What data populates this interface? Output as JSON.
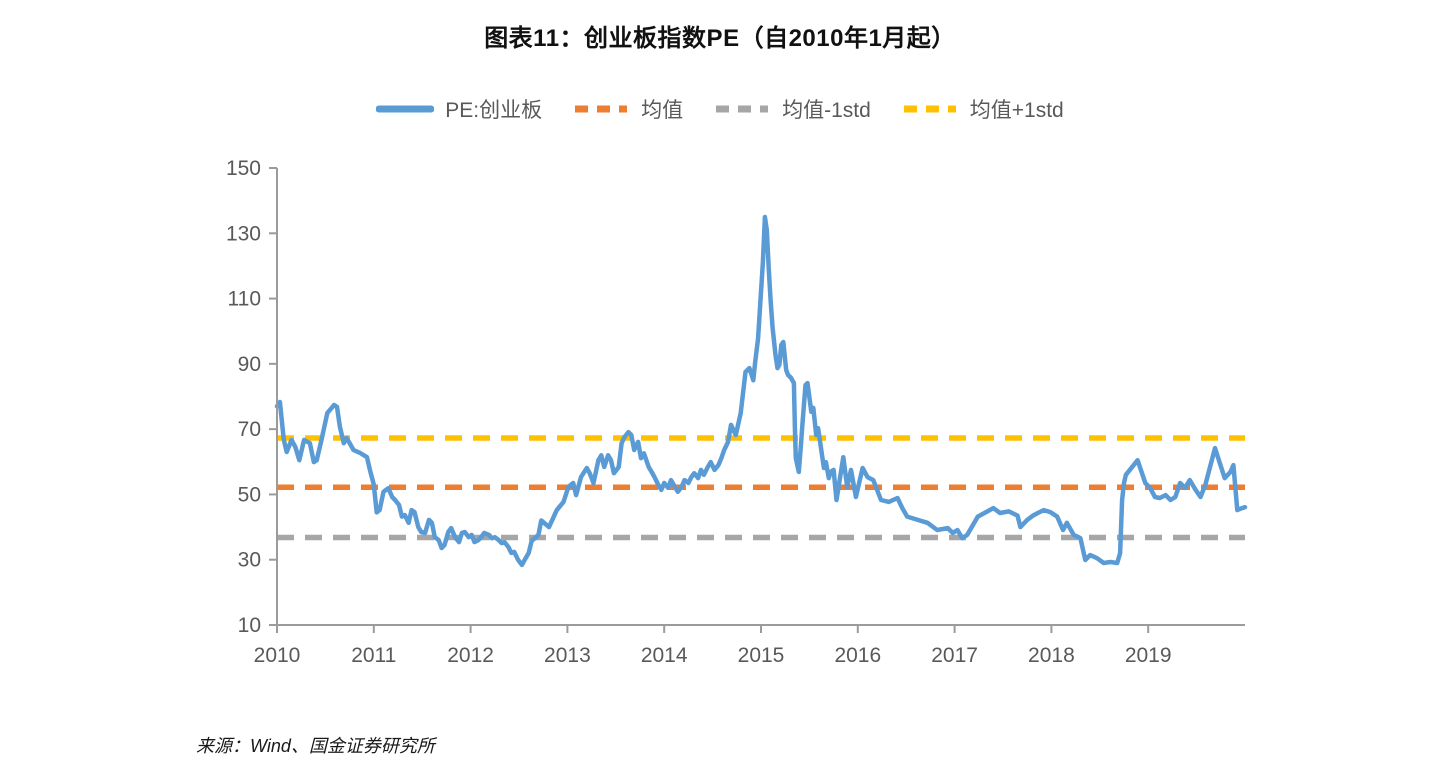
{
  "title": "图表11：创业板指数PE（自2010年1月起）",
  "source": "来源：Wind、国金证券研究所",
  "colors": {
    "series_blue": "#5B9BD5",
    "mean_orange": "#ED7D31",
    "minus_std_gray": "#A6A6A6",
    "plus_std_yellow": "#FFC000",
    "axis_gray": "#9B9B9B",
    "tick_label_gray": "#595959"
  },
  "legend": [
    {
      "label": "PE:创业板",
      "color": "#5B9BD5",
      "dashed": false
    },
    {
      "label": "均值",
      "color": "#ED7D31",
      "dashed": true
    },
    {
      "label": "均值-1std",
      "color": "#A6A6A6",
      "dashed": true
    },
    {
      "label": "均值+1std",
      "color": "#FFC000",
      "dashed": true
    }
  ],
  "chart_data": {
    "type": "line",
    "title": "创业板指数PE（自2010年1月起）",
    "xlabel": "",
    "ylabel": "",
    "x_axis": {
      "range": [
        2010,
        2020
      ],
      "ticks": [
        2010,
        2011,
        2012,
        2013,
        2014,
        2015,
        2016,
        2017,
        2018,
        2019
      ]
    },
    "y_axis": {
      "range": [
        10,
        150
      ],
      "ticks": [
        10,
        30,
        50,
        70,
        90,
        110,
        130,
        150
      ]
    },
    "grid": false,
    "legend_position": "top",
    "reference_lines": [
      {
        "name": "均值",
        "value": 52.2,
        "color": "#ED7D31"
      },
      {
        "name": "均值-1std",
        "value": 36.8,
        "color": "#A6A6A6"
      },
      {
        "name": "均值+1std",
        "value": 67.3,
        "color": "#FFC000"
      }
    ],
    "series": [
      {
        "name": "PE:创业板",
        "color": "#5B9BD5",
        "points": [
          [
            2010.0,
            77.0
          ],
          [
            2010.03,
            78.3
          ],
          [
            2010.07,
            66.7
          ],
          [
            2010.1,
            63.0
          ],
          [
            2010.15,
            66.7
          ],
          [
            2010.19,
            64.5
          ],
          [
            2010.23,
            60.5
          ],
          [
            2010.28,
            66.7
          ],
          [
            2010.34,
            65.7
          ],
          [
            2010.38,
            59.9
          ],
          [
            2010.41,
            60.5
          ],
          [
            2010.46,
            66.7
          ],
          [
            2010.52,
            74.9
          ],
          [
            2010.59,
            77.4
          ],
          [
            2010.62,
            76.8
          ],
          [
            2010.65,
            70.7
          ],
          [
            2010.69,
            65.7
          ],
          [
            2010.72,
            67.3
          ],
          [
            2010.79,
            63.6
          ],
          [
            2010.86,
            62.7
          ],
          [
            2010.93,
            61.4
          ],
          [
            2010.96,
            57.5
          ],
          [
            2011.0,
            53.0
          ],
          [
            2011.03,
            44.5
          ],
          [
            2011.06,
            45.2
          ],
          [
            2011.1,
            50.8
          ],
          [
            2011.15,
            51.9
          ],
          [
            2011.19,
            49.2
          ],
          [
            2011.22,
            48.3
          ],
          [
            2011.26,
            46.8
          ],
          [
            2011.29,
            43.2
          ],
          [
            2011.32,
            43.7
          ],
          [
            2011.36,
            41.3
          ],
          [
            2011.39,
            45.2
          ],
          [
            2011.42,
            44.6
          ],
          [
            2011.46,
            40.0
          ],
          [
            2011.49,
            38.5
          ],
          [
            2011.53,
            38.2
          ],
          [
            2011.57,
            42.2
          ],
          [
            2011.6,
            41.3
          ],
          [
            2011.63,
            36.9
          ],
          [
            2011.67,
            36.0
          ],
          [
            2011.7,
            33.6
          ],
          [
            2011.73,
            34.5
          ],
          [
            2011.77,
            38.5
          ],
          [
            2011.8,
            39.7
          ],
          [
            2011.84,
            36.9
          ],
          [
            2011.88,
            35.4
          ],
          [
            2011.91,
            38.2
          ],
          [
            2011.94,
            38.5
          ],
          [
            2011.98,
            36.9
          ],
          [
            2012.01,
            37.6
          ],
          [
            2012.04,
            35.4
          ],
          [
            2012.08,
            36.0
          ],
          [
            2012.11,
            36.9
          ],
          [
            2012.14,
            38.2
          ],
          [
            2012.19,
            37.6
          ],
          [
            2012.22,
            36.6
          ],
          [
            2012.25,
            36.9
          ],
          [
            2012.29,
            36.0
          ],
          [
            2012.32,
            35.1
          ],
          [
            2012.35,
            35.4
          ],
          [
            2012.39,
            33.9
          ],
          [
            2012.42,
            32.1
          ],
          [
            2012.45,
            32.4
          ],
          [
            2012.49,
            30.0
          ],
          [
            2012.53,
            28.4
          ],
          [
            2012.56,
            30.0
          ],
          [
            2012.6,
            32.1
          ],
          [
            2012.63,
            35.7
          ],
          [
            2012.7,
            37.6
          ],
          [
            2012.73,
            42.0
          ],
          [
            2012.81,
            40.0
          ],
          [
            2012.89,
            45.2
          ],
          [
            2012.96,
            47.7
          ],
          [
            2013.01,
            52.3
          ],
          [
            2013.06,
            53.5
          ],
          [
            2013.09,
            49.8
          ],
          [
            2013.14,
            55.3
          ],
          [
            2013.2,
            58.1
          ],
          [
            2013.23,
            56.5
          ],
          [
            2013.27,
            53.5
          ],
          [
            2013.32,
            60.5
          ],
          [
            2013.35,
            62.0
          ],
          [
            2013.38,
            58.4
          ],
          [
            2013.42,
            62.0
          ],
          [
            2013.45,
            60.5
          ],
          [
            2013.48,
            56.5
          ],
          [
            2013.53,
            58.4
          ],
          [
            2013.56,
            65.7
          ],
          [
            2013.59,
            67.6
          ],
          [
            2013.63,
            69.1
          ],
          [
            2013.66,
            68.2
          ],
          [
            2013.69,
            63.6
          ],
          [
            2013.73,
            66.1
          ],
          [
            2013.76,
            61.1
          ],
          [
            2013.79,
            62.6
          ],
          [
            2013.84,
            58.4
          ],
          [
            2013.87,
            56.9
          ],
          [
            2013.9,
            55.3
          ],
          [
            2013.94,
            52.9
          ],
          [
            2013.97,
            51.4
          ],
          [
            2014.0,
            53.5
          ],
          [
            2014.04,
            52.0
          ],
          [
            2014.07,
            54.4
          ],
          [
            2014.1,
            52.9
          ],
          [
            2014.14,
            50.8
          ],
          [
            2014.18,
            52.3
          ],
          [
            2014.21,
            54.4
          ],
          [
            2014.25,
            53.5
          ],
          [
            2014.28,
            55.3
          ],
          [
            2014.31,
            56.5
          ],
          [
            2014.35,
            55.0
          ],
          [
            2014.38,
            57.5
          ],
          [
            2014.41,
            56.0
          ],
          [
            2014.45,
            58.4
          ],
          [
            2014.48,
            59.9
          ],
          [
            2014.52,
            57.5
          ],
          [
            2014.56,
            59.0
          ],
          [
            2014.59,
            61.1
          ],
          [
            2014.62,
            63.6
          ],
          [
            2014.66,
            66.1
          ],
          [
            2014.69,
            71.3
          ],
          [
            2014.74,
            68.2
          ],
          [
            2014.79,
            74.9
          ],
          [
            2014.84,
            87.5
          ],
          [
            2014.88,
            88.7
          ],
          [
            2014.92,
            85.0
          ],
          [
            2014.94,
            90.6
          ],
          [
            2014.97,
            97.9
          ],
          [
            2015.0,
            112.0
          ],
          [
            2015.02,
            121.2
          ],
          [
            2015.04,
            135.0
          ],
          [
            2015.06,
            131.0
          ],
          [
            2015.08,
            119.4
          ],
          [
            2015.1,
            109.0
          ],
          [
            2015.12,
            101.0
          ],
          [
            2015.15,
            92.7
          ],
          [
            2015.17,
            88.7
          ],
          [
            2015.19,
            89.7
          ],
          [
            2015.21,
            95.8
          ],
          [
            2015.23,
            96.7
          ],
          [
            2015.26,
            88.1
          ],
          [
            2015.28,
            86.6
          ],
          [
            2015.31,
            85.7
          ],
          [
            2015.34,
            84.1
          ],
          [
            2015.35,
            70.3
          ],
          [
            2015.36,
            61.1
          ],
          [
            2015.39,
            56.9
          ],
          [
            2015.41,
            64.2
          ],
          [
            2015.43,
            72.2
          ],
          [
            2015.46,
            83.5
          ],
          [
            2015.48,
            84.1
          ],
          [
            2015.52,
            75.3
          ],
          [
            2015.54,
            76.5
          ],
          [
            2015.57,
            68.2
          ],
          [
            2015.59,
            70.3
          ],
          [
            2015.62,
            64.2
          ],
          [
            2015.65,
            58.1
          ],
          [
            2015.67,
            59.9
          ],
          [
            2015.7,
            55.0
          ],
          [
            2015.72,
            56.9
          ],
          [
            2015.75,
            57.5
          ],
          [
            2015.78,
            48.3
          ],
          [
            2015.85,
            61.4
          ],
          [
            2015.89,
            52.3
          ],
          [
            2015.93,
            57.5
          ],
          [
            2015.98,
            49.2
          ],
          [
            2016.05,
            58.1
          ],
          [
            2016.1,
            55.3
          ],
          [
            2016.16,
            54.4
          ],
          [
            2016.24,
            48.3
          ],
          [
            2016.32,
            47.7
          ],
          [
            2016.41,
            48.9
          ],
          [
            2016.46,
            45.8
          ],
          [
            2016.51,
            43.2
          ],
          [
            2016.62,
            42.2
          ],
          [
            2016.72,
            41.3
          ],
          [
            2016.82,
            39.1
          ],
          [
            2016.93,
            39.7
          ],
          [
            2016.98,
            38.2
          ],
          [
            2017.03,
            39.1
          ],
          [
            2017.08,
            36.6
          ],
          [
            2017.13,
            37.6
          ],
          [
            2017.24,
            43.2
          ],
          [
            2017.32,
            44.5
          ],
          [
            2017.4,
            45.8
          ],
          [
            2017.47,
            44.3
          ],
          [
            2017.56,
            44.8
          ],
          [
            2017.65,
            43.5
          ],
          [
            2017.68,
            40.0
          ],
          [
            2017.75,
            42.2
          ],
          [
            2017.81,
            43.5
          ],
          [
            2017.86,
            44.3
          ],
          [
            2017.92,
            45.2
          ],
          [
            2017.99,
            44.6
          ],
          [
            2018.06,
            43.2
          ],
          [
            2018.12,
            39.1
          ],
          [
            2018.16,
            41.3
          ],
          [
            2018.23,
            37.6
          ],
          [
            2018.3,
            36.6
          ],
          [
            2018.35,
            29.9
          ],
          [
            2018.4,
            31.4
          ],
          [
            2018.47,
            30.5
          ],
          [
            2018.54,
            29.0
          ],
          [
            2018.61,
            29.3
          ],
          [
            2018.68,
            29.0
          ],
          [
            2018.71,
            32.0
          ],
          [
            2018.73,
            48.3
          ],
          [
            2018.75,
            53.5
          ],
          [
            2018.77,
            56.0
          ],
          [
            2018.89,
            60.5
          ],
          [
            2018.97,
            53.5
          ],
          [
            2019.02,
            52.0
          ],
          [
            2019.07,
            49.2
          ],
          [
            2019.12,
            48.9
          ],
          [
            2019.18,
            49.8
          ],
          [
            2019.23,
            48.3
          ],
          [
            2019.28,
            49.2
          ],
          [
            2019.33,
            53.5
          ],
          [
            2019.38,
            52.0
          ],
          [
            2019.43,
            54.4
          ],
          [
            2019.49,
            51.4
          ],
          [
            2019.54,
            49.2
          ],
          [
            2019.59,
            52.9
          ],
          [
            2019.69,
            64.2
          ],
          [
            2019.74,
            59.6
          ],
          [
            2019.79,
            55.0
          ],
          [
            2019.85,
            56.9
          ],
          [
            2019.88,
            59.0
          ],
          [
            2019.92,
            45.2
          ],
          [
            2019.97,
            45.8
          ],
          [
            2020.0,
            46.1
          ]
        ]
      }
    ]
  }
}
